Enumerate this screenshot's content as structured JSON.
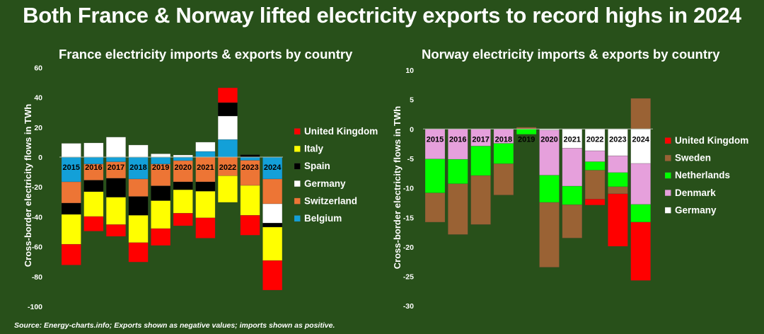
{
  "title": "Both France & Norway lifted electricity exports to record highs in 2024",
  "source": "Source: Energy-charts.info; Exports shown as negative values; imports shown as positive.",
  "chart_data": [
    {
      "type": "bar",
      "stacked": true,
      "title": "France electricity imports & exports by country",
      "ylabel": "Cross-border electricity flows in TWh",
      "xlabel": "",
      "ylim": [
        -100,
        60
      ],
      "yticks": [
        60,
        40,
        20,
        0,
        -20,
        -40,
        -60,
        -80,
        -100
      ],
      "grid": false,
      "legend_position": "right",
      "categories": [
        "2015",
        "2016",
        "2017",
        "2018",
        "2019",
        "2020",
        "2021",
        "2022",
        "2023",
        "2024"
      ],
      "series": [
        {
          "name": "Belgium",
          "color": "#13a0d8",
          "values": [
            -16.6,
            -4.7,
            -3.2,
            -14.7,
            -4.7,
            -2.4,
            3.8,
            11.8,
            -2.2,
            -14.7
          ]
        },
        {
          "name": "Switzerland",
          "color": "#ed7535",
          "values": [
            -14.2,
            -10.8,
            -11.0,
            -11.7,
            -14.6,
            -14.2,
            -16.6,
            -12.5,
            -16.8,
            -16.6
          ]
        },
        {
          "name": "Germany",
          "color": "#ffffff",
          "values": [
            9.2,
            9.5,
            13.4,
            8.1,
            2.2,
            1.4,
            6.2,
            15.7,
            0,
            -12.9
          ]
        },
        {
          "name": "Spain",
          "color": "#000000",
          "values": [
            -7.6,
            -7.7,
            -12.7,
            -12.6,
            -9.9,
            -5.3,
            -6.3,
            9.0,
            1.6,
            -2.7
          ]
        },
        {
          "name": "Italy",
          "color": "#ffff00",
          "values": [
            -20.0,
            -16.6,
            -18.3,
            -18.3,
            -18.7,
            -15.7,
            -17.8,
            -17.8,
            -20.0,
            -22.4
          ]
        },
        {
          "name": "United Kingdom",
          "color": "#ff0000",
          "values": [
            -13.9,
            -9.8,
            -7.9,
            -13.0,
            -11.3,
            -8.4,
            -13.6,
            9.9,
            -13.3,
            -19.8
          ]
        }
      ],
      "legend": [
        "United Kingdom",
        "Italy",
        "Spain",
        "Germany",
        "Switzerland",
        "Belgium"
      ]
    },
    {
      "type": "bar",
      "stacked": true,
      "title": "Norway electricity imports & exports by country",
      "ylabel": "Cross-border electricity flows in TWh",
      "xlabel": "",
      "ylim": [
        -30,
        10
      ],
      "yticks": [
        10,
        5,
        0,
        -5,
        -10,
        -15,
        -20,
        -25,
        -30
      ],
      "grid": false,
      "legend_position": "right",
      "categories": [
        "2015",
        "2016",
        "2017",
        "2018",
        "2019",
        "2020",
        "2021",
        "2022",
        "2023",
        "2024"
      ],
      "series": [
        {
          "name": "Germany",
          "color": "#ffffff",
          "values": [
            0,
            0,
            0,
            0,
            0,
            -0.2,
            -3.25,
            -3.7,
            -4.55,
            -5.85
          ]
        },
        {
          "name": "Denmark",
          "color": "#e6a0dc",
          "values": [
            -5.1,
            -5.15,
            -2.9,
            -2.45,
            0,
            -7.65,
            -6.45,
            -1.85,
            -2.85,
            -6.95
          ]
        },
        {
          "name": "Netherlands",
          "color": "#00ff00",
          "values": [
            -5.75,
            -4.15,
            -5.0,
            -3.45,
            -0.9,
            -4.6,
            -3.15,
            -1.45,
            -2.4,
            -3.0
          ]
        },
        {
          "name": "Sweden",
          "color": "#9a6234",
          "values": [
            -4.95,
            -8.6,
            -8.3,
            -5.3,
            0.3,
            -11.0,
            -5.65,
            -4.9,
            -1.2,
            5.2
          ]
        },
        {
          "name": "United Kingdom",
          "color": "#ff0000",
          "values": [
            0,
            0,
            0,
            0,
            0,
            0,
            0,
            -1.0,
            -8.9,
            -9.9
          ]
        }
      ],
      "legend": [
        "United Kingdom",
        "Sweden",
        "Netherlands",
        "Denmark",
        "Germany"
      ]
    }
  ]
}
